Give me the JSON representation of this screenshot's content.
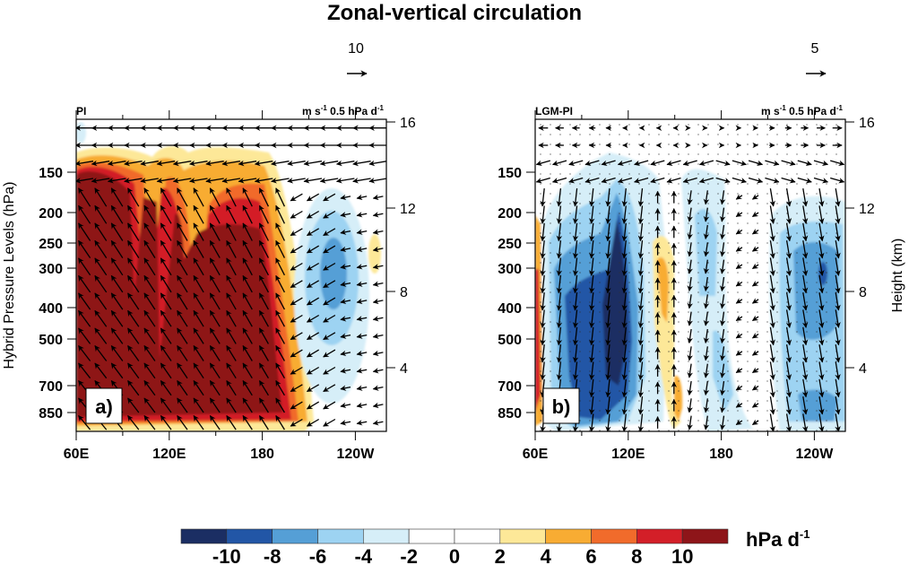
{
  "chart_data": {
    "type": "heatmap",
    "title": "Zonal-vertical circulation",
    "colorbar": {
      "levels": [
        -10,
        -8,
        -6,
        -4,
        -2,
        0,
        2,
        4,
        6,
        8,
        10
      ],
      "tick_labels": [
        "-10",
        "-8",
        "-6",
        "-4",
        "-2",
        "0",
        "2",
        "4",
        "6",
        "8",
        "10"
      ],
      "colors": [
        "#1b2e63",
        "#2256a6",
        "#559fd6",
        "#9dd3f2",
        "#d6eef8",
        "#ffffff",
        "#ffffff",
        "#fde898",
        "#f8ac33",
        "#f16b2b",
        "#d31f28",
        "#8e1519"
      ],
      "units": "hPa d",
      "units_superscript": "-1"
    },
    "panels": [
      {
        "id": "a",
        "label": "a)",
        "left_title": "PI",
        "right_title": "m s",
        "right_title_sup1": "-1",
        "right_title_mid": " 0.5 hPa d",
        "right_title_sup2": "-1",
        "ref_vector_value": "10",
        "xlabel_ticks": [
          "60E",
          "120E",
          "180",
          "120W"
        ],
        "x_range_deg": [
          60,
          260
        ],
        "ylabel_left": "Hybrid Pressure Levels (hPa)",
        "yticks_left": [
          "150",
          "200",
          "250",
          "300",
          "400",
          "500",
          "700",
          "850"
        ],
        "yticks_right": [
          "16",
          "12",
          "8",
          "4"
        ],
        "ylabel_right": "",
        "features": [
          {
            "name": "strong ascent west Pacific / Maritime Continent",
            "sign": "positive",
            "peak": ">10",
            "lon_range": [
              60,
              190
            ]
          },
          {
            "name": "descent central-east Pacific",
            "sign": "negative",
            "peak": "-6",
            "lon_range": [
              205,
              240
            ]
          }
        ]
      },
      {
        "id": "b",
        "label": "b)",
        "left_title": "LGM-PI",
        "right_title": "m s",
        "right_title_sup1": "-1",
        "right_title_mid": " 0.5 hPa d",
        "right_title_sup2": "-1",
        "ref_vector_value": "5",
        "xlabel_ticks": [
          "60E",
          "120E",
          "180",
          "120W"
        ],
        "x_range_deg": [
          60,
          260
        ],
        "ylabel_left": "",
        "yticks_left": [
          "150",
          "200",
          "250",
          "300",
          "400",
          "500",
          "700",
          "850"
        ],
        "yticks_right": [
          "16",
          "12",
          "8",
          "4"
        ],
        "ylabel_right": "Height (km)",
        "features": [
          {
            "name": "anomalous descent Indian Ocean / Maritime Continent",
            "sign": "negative",
            "peak": "<-10",
            "lon_range": [
              70,
              125
            ]
          },
          {
            "name": "anomalous ascent near 140E",
            "sign": "positive",
            "peak": "6",
            "lon_range": [
              135,
              155
            ]
          },
          {
            "name": "anomalous descent central Pacific",
            "sign": "negative",
            "peak": "-6",
            "lon_range": [
              160,
              190
            ]
          },
          {
            "name": "anomalous descent eastern Pacific",
            "sign": "negative",
            "peak": "-8",
            "lon_range": [
              215,
              260
            ]
          }
        ]
      }
    ]
  }
}
